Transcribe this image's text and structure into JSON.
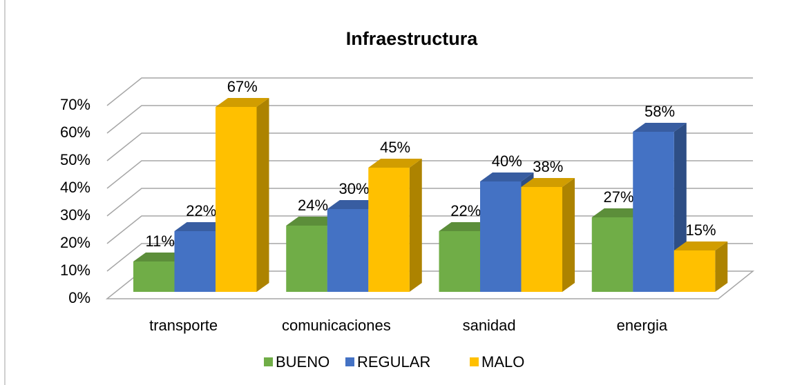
{
  "chart_data": {
    "type": "bar3d",
    "title": "Infraestructura",
    "categories": [
      "transporte",
      "comunicaciones",
      "sanidad",
      "energia"
    ],
    "series": [
      {
        "name": "BUENO",
        "color": "#70ad47",
        "values": [
          11,
          24,
          22,
          27
        ],
        "value_labels": [
          "11%",
          "24%",
          "22%",
          "27%"
        ]
      },
      {
        "name": "REGULAR",
        "color": "#4472c4",
        "values": [
          22,
          30,
          40,
          58
        ],
        "value_labels": [
          "22%",
          "30%",
          "40%",
          "58%"
        ]
      },
      {
        "name": "MALO",
        "color": "#ffc000",
        "values": [
          67,
          45,
          38,
          15
        ],
        "value_labels": [
          "67%",
          "45%",
          "38%",
          "15%"
        ]
      }
    ],
    "ylim": [
      0,
      70
    ],
    "yticks": [
      {
        "value": 0,
        "label": "0%"
      },
      {
        "value": 10,
        "label": "10%"
      },
      {
        "value": 20,
        "label": "20%"
      },
      {
        "value": 30,
        "label": "30%"
      },
      {
        "value": 40,
        "label": "40%"
      },
      {
        "value": 50,
        "label": "50%"
      },
      {
        "value": 60,
        "label": "60%"
      },
      {
        "value": 70,
        "label": "70%"
      }
    ],
    "grid": true,
    "legend": "bottom"
  }
}
